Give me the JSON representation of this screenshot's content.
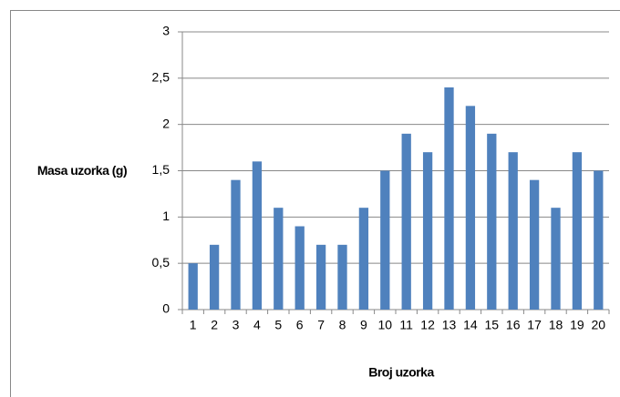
{
  "chart_data": {
    "type": "bar",
    "x_label": "Broj uzorka",
    "y_label": "Masa uzorka (g)",
    "categories": [
      "1",
      "2",
      "3",
      "4",
      "5",
      "6",
      "7",
      "8",
      "9",
      "10",
      "11",
      "12",
      "13",
      "14",
      "15",
      "16",
      "17",
      "18",
      "19",
      "20"
    ],
    "values": [
      0.5,
      0.7,
      1.4,
      1.6,
      1.1,
      0.9,
      0.7,
      0.7,
      1.1,
      1.5,
      1.9,
      1.7,
      2.4,
      2.2,
      1.9,
      1.7,
      1.4,
      1.1,
      1.7,
      1.5
    ],
    "color": "#4f81bd",
    "ylim": [
      0,
      3
    ],
    "yticks": [
      0,
      {
        "value": 0.5,
        "label": "0,5"
      },
      1,
      {
        "value": 1.5,
        "label": "1,5"
      },
      2,
      {
        "value": 2.5,
        "label": "2,5"
      },
      3
    ],
    "grid": true
  }
}
